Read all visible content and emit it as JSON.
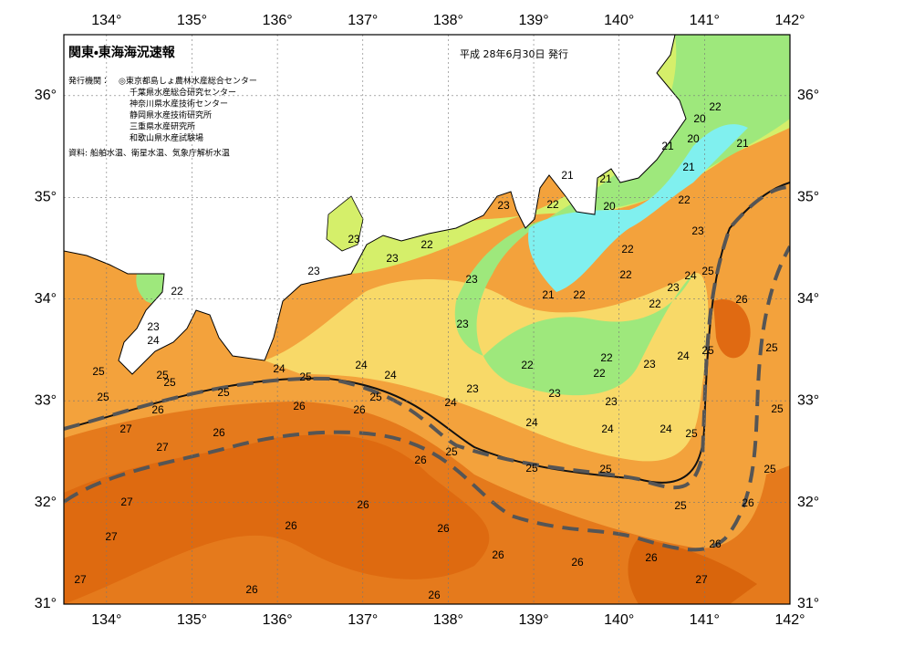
{
  "header": {
    "title": "関東・東海海況速報",
    "issued": "平成  28年6月30日  発行"
  },
  "agencies": {
    "label": "発行機関：",
    "items": [
      "◎東京都島しょ農林水産総合センター",
      "千葉県水産総合研究センター",
      "神奈川県水産技術センター",
      "静岡県水産技術研究所",
      "三重県水産研究所",
      "和歌山県水産試験場"
    ]
  },
  "source": "資料: 船舶水温、衛星水温、気象庁解析水温",
  "map": {
    "xlim": [
      133.5,
      142
    ],
    "ylim": [
      31,
      36.6
    ],
    "xticks": [
      {
        "value": 134,
        "label": "134°"
      },
      {
        "value": 135,
        "label": "135°"
      },
      {
        "value": 136,
        "label": "136°"
      },
      {
        "value": 137,
        "label": "137°"
      },
      {
        "value": 138,
        "label": "138°"
      },
      {
        "value": 139,
        "label": "139°"
      },
      {
        "value": 140,
        "label": "140°"
      },
      {
        "value": 141,
        "label": "141°"
      },
      {
        "value": 142,
        "label": "142°"
      }
    ],
    "yticks": [
      {
        "value": 31,
        "label": "31°"
      },
      {
        "value": 32,
        "label": "32°"
      },
      {
        "value": 33,
        "label": "33°"
      },
      {
        "value": 34,
        "label": "34°"
      },
      {
        "value": 35,
        "label": "35°"
      },
      {
        "value": 36,
        "label": "36°"
      }
    ],
    "contour_labels": [
      22,
      20,
      20,
      21,
      21,
      21,
      21,
      21,
      22,
      20,
      22,
      23,
      23,
      22,
      23,
      23,
      22,
      23,
      23,
      22,
      24,
      25,
      23,
      22,
      21,
      22,
      22,
      26,
      23,
      23,
      24,
      25,
      25,
      24,
      22,
      22,
      23,
      25,
      25,
      25,
      24,
      25,
      24,
      24,
      22,
      23,
      25,
      25,
      25,
      23,
      23,
      24,
      26,
      26,
      26,
      25,
      27,
      26,
      24,
      24,
      24,
      25,
      27,
      25,
      26,
      25,
      25,
      25,
      27,
      25,
      26,
      26,
      26,
      26,
      27,
      26,
      26,
      26,
      26,
      27,
      27,
      26,
      26
    ]
  }
}
